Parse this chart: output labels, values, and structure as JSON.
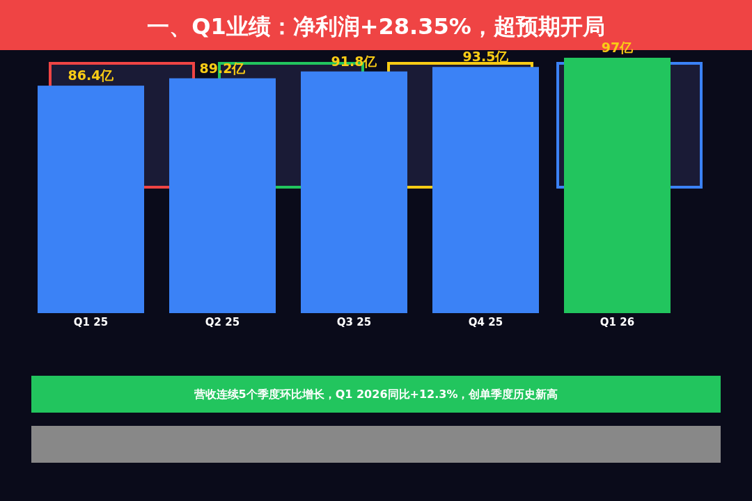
{
  "chart_data": {
    "type": "bar",
    "title": "一、Q1业绩：净利润+28.35%，超预期开局",
    "categories": [
      "Q1 25",
      "Q2 25",
      "Q3 25",
      "Q4 25",
      "Q1 26"
    ],
    "values": [
      86.4,
      89.2,
      91.8,
      93.5,
      97
    ],
    "colors": [
      "#3b82f6",
      "#3b82f6",
      "#3b82f6",
      "#3b82f6",
      "#22c55e"
    ],
    "value_labels": [
      "86.4亿",
      "89.2亿",
      "91.8亿",
      "93.5亿",
      "97亿"
    ],
    "relative": false,
    "annotations": [
      "营收连续5个季度环比增长，Q1 2026同比+12.3%，创单季度历史新高"
    ]
  }
}
